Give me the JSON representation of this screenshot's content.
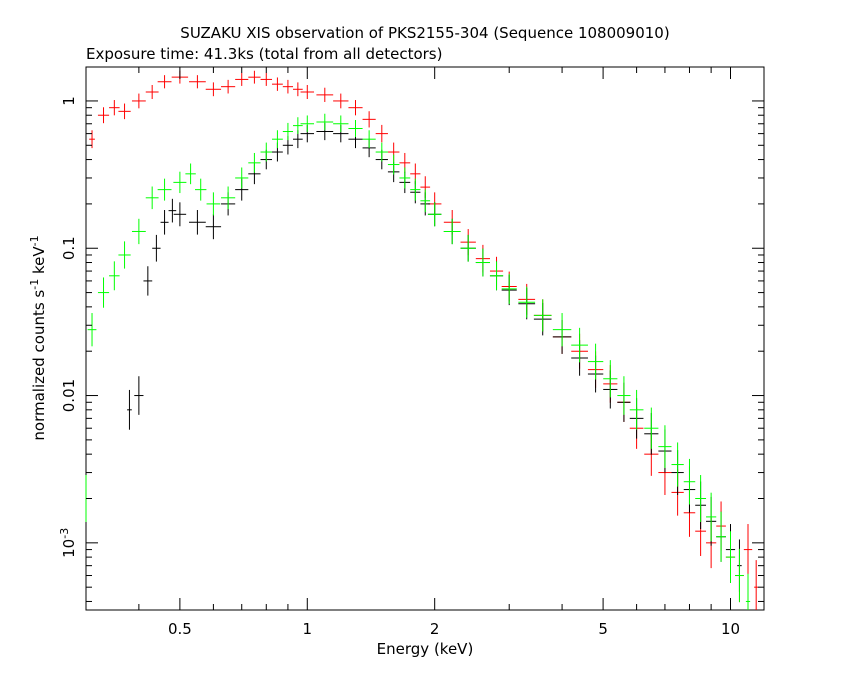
{
  "chart_data": {
    "type": "scatter",
    "title": "SUZAKU XIS observation of PKS2155-304 (Sequence 108009010)",
    "subtitle": "Exposure time: 41.3ks (total from all detectors)",
    "xlabel": "Energy (keV)",
    "ylabel_main": "normalized counts s",
    "ylabel_sup1": "-1",
    "ylabel_mid": " keV",
    "ylabel_sup2": "-1",
    "x_scale": "log",
    "y_scale": "log",
    "xlim": [
      0.3,
      12
    ],
    "ylim": [
      0.00035,
      1.7
    ],
    "x_ticks": [
      {
        "value": 0.5,
        "label": "0.5"
      },
      {
        "value": 1,
        "label": "1"
      },
      {
        "value": 2,
        "label": "2"
      },
      {
        "value": 5,
        "label": "5"
      },
      {
        "value": 10,
        "label": "10"
      }
    ],
    "y_ticks": [
      {
        "value": 1,
        "label": "1"
      },
      {
        "value": 0.1,
        "label": "0.1"
      },
      {
        "value": 0.01,
        "label": "0.01"
      },
      {
        "value": 0.001,
        "label": "10",
        "sup": "-3"
      }
    ],
    "series": [
      {
        "color": "#ff0000",
        "points": [
          [
            0.31,
            0.55
          ],
          [
            0.33,
            0.8
          ],
          [
            0.35,
            0.9
          ],
          [
            0.37,
            0.85
          ],
          [
            0.4,
            1.0
          ],
          [
            0.43,
            1.15
          ],
          [
            0.46,
            1.35
          ],
          [
            0.5,
            1.45
          ],
          [
            0.55,
            1.35
          ],
          [
            0.6,
            1.2
          ],
          [
            0.65,
            1.25
          ],
          [
            0.7,
            1.4
          ],
          [
            0.75,
            1.45
          ],
          [
            0.8,
            1.4
          ],
          [
            0.85,
            1.3
          ],
          [
            0.9,
            1.25
          ],
          [
            0.95,
            1.2
          ],
          [
            1.0,
            1.15
          ],
          [
            1.1,
            1.1
          ],
          [
            1.2,
            1.0
          ],
          [
            1.3,
            0.9
          ],
          [
            1.4,
            0.75
          ],
          [
            1.5,
            0.6
          ],
          [
            1.6,
            0.45
          ],
          [
            1.7,
            0.38
          ],
          [
            1.8,
            0.32
          ],
          [
            1.9,
            0.26
          ],
          [
            2.0,
            0.2
          ],
          [
            2.2,
            0.15
          ],
          [
            2.4,
            0.11
          ],
          [
            2.6,
            0.085
          ],
          [
            2.8,
            0.07
          ],
          [
            3.0,
            0.055
          ],
          [
            3.3,
            0.045
          ],
          [
            3.6,
            0.035
          ],
          [
            4.0,
            0.025
          ],
          [
            4.4,
            0.02
          ],
          [
            4.8,
            0.015
          ],
          [
            5.2,
            0.012
          ],
          [
            5.6,
            0.009
          ],
          [
            6.0,
            0.006
          ],
          [
            6.5,
            0.004
          ],
          [
            7.0,
            0.003
          ],
          [
            7.5,
            0.0022
          ],
          [
            8.0,
            0.0016
          ],
          [
            8.5,
            0.0012
          ],
          [
            9.0,
            0.001
          ],
          [
            9.5,
            0.0013
          ],
          [
            10.0,
            0.0008
          ],
          [
            10.5,
            0.0006
          ],
          [
            11.0,
            0.0009
          ],
          [
            11.5,
            0.0005
          ]
        ]
      },
      {
        "color": "#000000",
        "points": [
          [
            0.38,
            0.008
          ],
          [
            0.4,
            0.01
          ],
          [
            0.42,
            0.06
          ],
          [
            0.44,
            0.1
          ],
          [
            0.46,
            0.15
          ],
          [
            0.48,
            0.18
          ],
          [
            0.5,
            0.17
          ],
          [
            0.55,
            0.15
          ],
          [
            0.6,
            0.14
          ],
          [
            0.65,
            0.2
          ],
          [
            0.7,
            0.25
          ],
          [
            0.75,
            0.32
          ],
          [
            0.8,
            0.4
          ],
          [
            0.85,
            0.45
          ],
          [
            0.9,
            0.5
          ],
          [
            0.95,
            0.55
          ],
          [
            1.0,
            0.6
          ],
          [
            1.1,
            0.62
          ],
          [
            1.2,
            0.6
          ],
          [
            1.3,
            0.55
          ],
          [
            1.4,
            0.48
          ],
          [
            1.5,
            0.4
          ],
          [
            1.6,
            0.33
          ],
          [
            1.7,
            0.28
          ],
          [
            1.8,
            0.24
          ],
          [
            1.9,
            0.2
          ],
          [
            2.0,
            0.17
          ],
          [
            2.2,
            0.13
          ],
          [
            2.4,
            0.1
          ],
          [
            2.6,
            0.08
          ],
          [
            2.8,
            0.065
          ],
          [
            3.0,
            0.052
          ],
          [
            3.3,
            0.042
          ],
          [
            3.6,
            0.033
          ],
          [
            4.0,
            0.025
          ],
          [
            4.4,
            0.018
          ],
          [
            4.8,
            0.014
          ],
          [
            5.2,
            0.011
          ],
          [
            5.6,
            0.009
          ],
          [
            6.0,
            0.007
          ],
          [
            6.5,
            0.0055
          ],
          [
            7.0,
            0.0042
          ],
          [
            7.5,
            0.003
          ],
          [
            8.0,
            0.0023
          ],
          [
            8.5,
            0.0018
          ],
          [
            9.0,
            0.0014
          ],
          [
            9.5,
            0.0011
          ],
          [
            10.0,
            0.0009
          ],
          [
            10.5,
            0.0007
          ]
        ]
      },
      {
        "color": "#00ff00",
        "points": [
          [
            0.3,
            0.002
          ],
          [
            0.31,
            0.028
          ],
          [
            0.33,
            0.05
          ],
          [
            0.35,
            0.065
          ],
          [
            0.37,
            0.09
          ],
          [
            0.4,
            0.13
          ],
          [
            0.43,
            0.22
          ],
          [
            0.46,
            0.25
          ],
          [
            0.5,
            0.28
          ],
          [
            0.53,
            0.32
          ],
          [
            0.56,
            0.25
          ],
          [
            0.6,
            0.2
          ],
          [
            0.65,
            0.22
          ],
          [
            0.7,
            0.3
          ],
          [
            0.75,
            0.38
          ],
          [
            0.8,
            0.45
          ],
          [
            0.85,
            0.55
          ],
          [
            0.9,
            0.62
          ],
          [
            0.95,
            0.68
          ],
          [
            1.0,
            0.7
          ],
          [
            1.1,
            0.72
          ],
          [
            1.2,
            0.7
          ],
          [
            1.3,
            0.65
          ],
          [
            1.4,
            0.55
          ],
          [
            1.5,
            0.45
          ],
          [
            1.6,
            0.37
          ],
          [
            1.7,
            0.3
          ],
          [
            1.8,
            0.25
          ],
          [
            1.9,
            0.21
          ],
          [
            2.0,
            0.17
          ],
          [
            2.2,
            0.13
          ],
          [
            2.4,
            0.1
          ],
          [
            2.6,
            0.08
          ],
          [
            2.8,
            0.065
          ],
          [
            3.0,
            0.053
          ],
          [
            3.3,
            0.043
          ],
          [
            3.6,
            0.035
          ],
          [
            4.0,
            0.028
          ],
          [
            4.4,
            0.022
          ],
          [
            4.8,
            0.017
          ],
          [
            5.2,
            0.013
          ],
          [
            5.6,
            0.01
          ],
          [
            6.0,
            0.008
          ],
          [
            6.5,
            0.006
          ],
          [
            7.0,
            0.0045
          ],
          [
            7.5,
            0.0034
          ],
          [
            8.0,
            0.0026
          ],
          [
            8.5,
            0.002
          ],
          [
            9.0,
            0.0015
          ],
          [
            9.5,
            0.0011
          ],
          [
            10.0,
            0.0008
          ],
          [
            10.5,
            0.0006
          ],
          [
            11.0,
            0.0004
          ]
        ]
      }
    ]
  }
}
